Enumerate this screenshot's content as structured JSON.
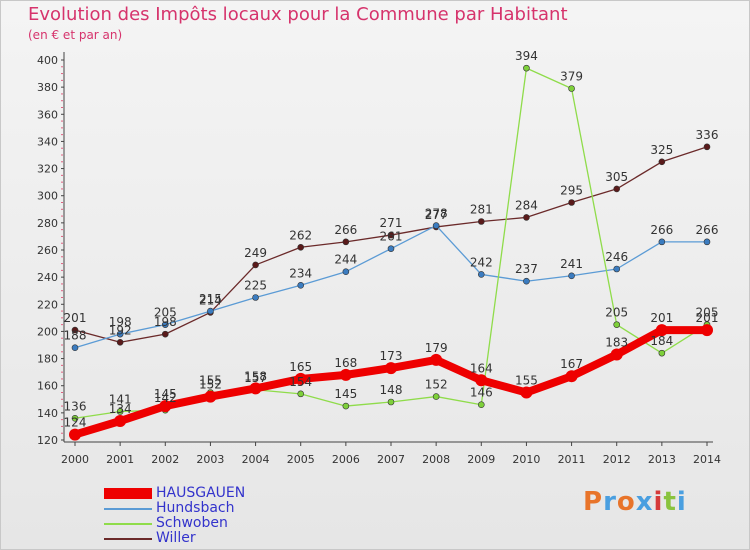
{
  "title": "Evolution des Impôts locaux pour la Commune par Habitant",
  "subtitle": "(en € et par an)",
  "logo": {
    "text": "Proxiti",
    "letter_colors": [
      "#e8742a",
      "#4a9fe0",
      "#e8742a",
      "#4a9fe0",
      "#d63a3a",
      "#8ac33e",
      "#4a9fe0"
    ]
  },
  "chart_data": {
    "type": "line",
    "title": "Evolution des Impôts locaux pour la Commune par Habitant",
    "subtitle": "(en € et par an)",
    "xlabel": "",
    "ylabel": "",
    "x": [
      2000,
      2001,
      2002,
      2003,
      2004,
      2005,
      2006,
      2007,
      2008,
      2009,
      2010,
      2011,
      2012,
      2013,
      2014
    ],
    "ylim": [
      120,
      400
    ],
    "yticks": [
      120,
      140,
      160,
      180,
      200,
      220,
      240,
      260,
      280,
      300,
      320,
      340,
      360,
      380,
      400
    ],
    "grid": false,
    "legend_position": "bottom-left",
    "series": [
      {
        "name": "HAUSGAUEN",
        "color": "#ee0000",
        "marker": "#ee0000",
        "label_color": "#333333",
        "width": 8,
        "values": [
          124,
          134,
          145,
          152,
          158,
          165,
          168,
          173,
          179,
          164,
          155,
          167,
          183,
          201,
          201
        ]
      },
      {
        "name": "Hundsbach",
        "color": "#5b9bd5",
        "marker": "#3b7cc0",
        "label_color": "#333333",
        "width": 1.3,
        "values": [
          188,
          198,
          205,
          215,
          225,
          234,
          244,
          261,
          278,
          242,
          237,
          241,
          246,
          266,
          266
        ]
      },
      {
        "name": "Schwoben",
        "color": "#8fdc4a",
        "marker": "#7ed03a",
        "label_color": "#333333",
        "width": 1.3,
        "values": [
          136,
          141,
          142,
          155,
          157,
          154,
          145,
          148,
          152,
          146,
          394,
          379,
          205,
          184,
          205
        ]
      },
      {
        "name": "Willer",
        "color": "#6b2a2a",
        "marker": "#5a1a1a",
        "label_color": "#333333",
        "width": 1.3,
        "values": [
          201,
          192,
          198,
          214,
          249,
          262,
          266,
          271,
          277,
          281,
          284,
          295,
          305,
          325,
          336
        ]
      }
    ]
  }
}
